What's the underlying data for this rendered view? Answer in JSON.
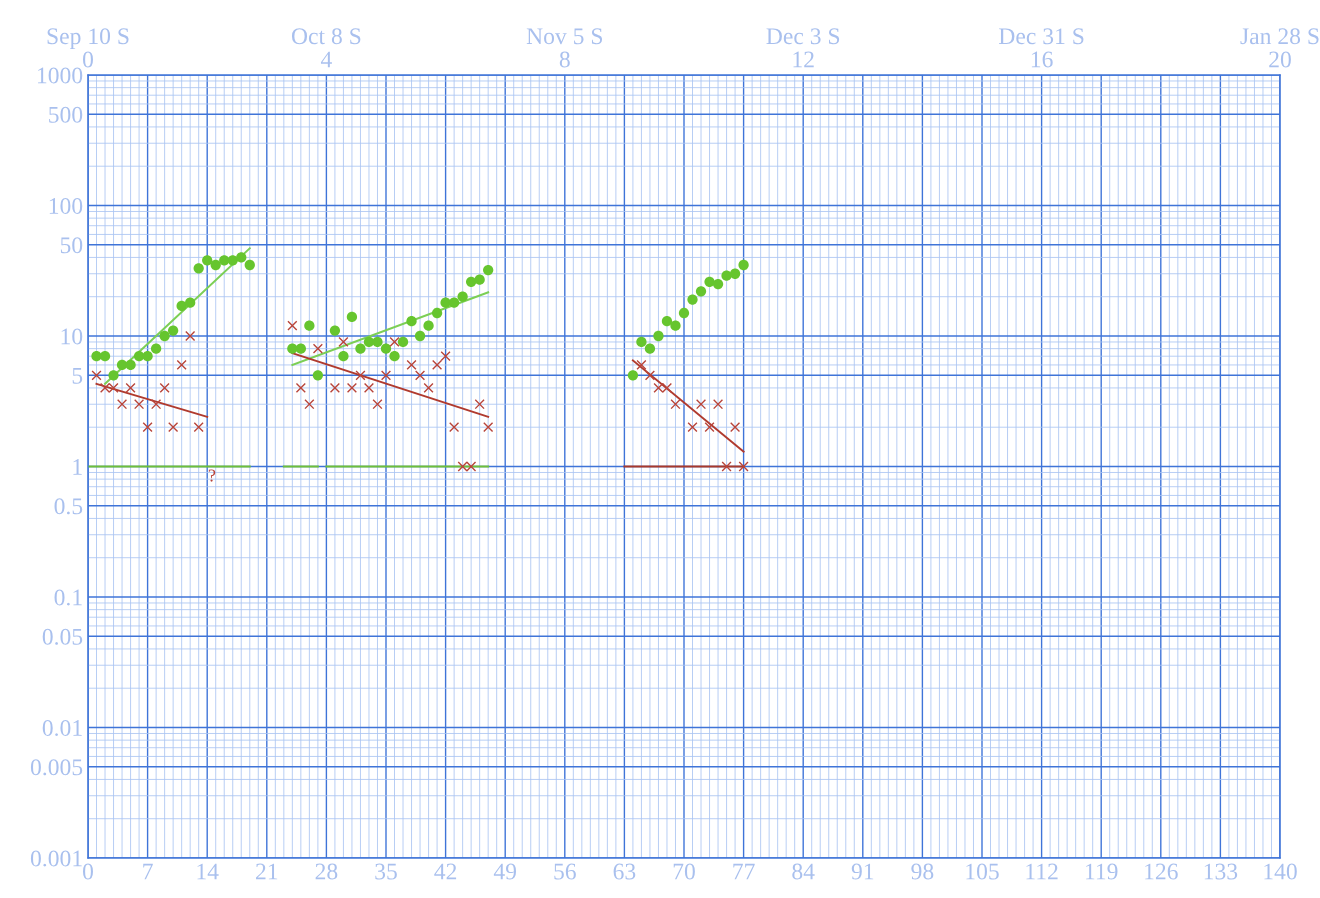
{
  "chart_data": {
    "type": "scatter",
    "xlim": [
      0,
      140
    ],
    "xticks": [
      0,
      {
        "value": 1,
        "label": null
      },
      {
        "value": 2,
        "label": null
      },
      {
        "value": 3,
        "label": null
      },
      {
        "value": 4,
        "label": null
      },
      {
        "value": 5,
        "label": null
      },
      {
        "value": 6,
        "label": null
      },
      7,
      {
        "value": 8,
        "label": null
      },
      {
        "value": 9,
        "label": null
      },
      {
        "value": 10,
        "label": null
      },
      {
        "value": 11,
        "label": null
      },
      {
        "value": 12,
        "label": null
      },
      {
        "value": 13,
        "label": null
      },
      14,
      {
        "value": 15,
        "label": null
      },
      {
        "value": 16,
        "label": null
      },
      {
        "value": 17,
        "label": null
      },
      {
        "value": 18,
        "label": null
      },
      {
        "value": 19,
        "label": null
      },
      {
        "value": 20,
        "label": null
      },
      21,
      {
        "value": 22,
        "label": null
      },
      {
        "value": 23,
        "label": null
      },
      {
        "value": 24,
        "label": null
      },
      {
        "value": 25,
        "label": null
      },
      {
        "value": 26,
        "label": null
      },
      {
        "value": 27,
        "label": null
      },
      28,
      {
        "value": 29,
        "label": null
      },
      {
        "value": 30,
        "label": null
      },
      {
        "value": 31,
        "label": null
      },
      {
        "value": 32,
        "label": null
      },
      {
        "value": 33,
        "label": null
      },
      {
        "value": 34,
        "label": null
      },
      35,
      {
        "value": 36,
        "label": null
      },
      {
        "value": 37,
        "label": null
      },
      {
        "value": 38,
        "label": null
      },
      {
        "value": 39,
        "label": null
      },
      {
        "value": 40,
        "label": null
      },
      {
        "value": 41,
        "label": null
      },
      42,
      {
        "value": 43,
        "label": null
      },
      {
        "value": 44,
        "label": null
      },
      {
        "value": 45,
        "label": null
      },
      {
        "value": 46,
        "label": null
      },
      {
        "value": 47,
        "label": null
      },
      {
        "value": 48,
        "label": null
      },
      49,
      {
        "value": 50,
        "label": null
      },
      {
        "value": 51,
        "label": null
      },
      {
        "value": 52,
        "label": null
      },
      {
        "value": 53,
        "label": null
      },
      {
        "value": 54,
        "label": null
      },
      {
        "value": 55,
        "label": null
      },
      56,
      {
        "value": 57,
        "label": null
      },
      {
        "value": 58,
        "label": null
      },
      {
        "value": 59,
        "label": null
      },
      {
        "value": 60,
        "label": null
      },
      {
        "value": 61,
        "label": null
      },
      {
        "value": 62,
        "label": null
      },
      63,
      {
        "value": 64,
        "label": null
      },
      {
        "value": 65,
        "label": null
      },
      {
        "value": 66,
        "label": null
      },
      {
        "value": 67,
        "label": null
      },
      {
        "value": 68,
        "label": null
      },
      {
        "value": 69,
        "label": null
      },
      70,
      {
        "value": 71,
        "label": null
      },
      {
        "value": 72,
        "label": null
      },
      {
        "value": 73,
        "label": null
      },
      {
        "value": 74,
        "label": null
      },
      {
        "value": 75,
        "label": null
      },
      {
        "value": 76,
        "label": null
      },
      77,
      {
        "value": 78,
        "label": null
      },
      {
        "value": 79,
        "label": null
      },
      {
        "value": 80,
        "label": null
      },
      {
        "value": 81,
        "label": null
      },
      {
        "value": 82,
        "label": null
      },
      {
        "value": 83,
        "label": null
      },
      84,
      {
        "value": 85,
        "label": null
      },
      {
        "value": 86,
        "label": null
      },
      {
        "value": 87,
        "label": null
      },
      {
        "value": 88,
        "label": null
      },
      {
        "value": 89,
        "label": null
      },
      {
        "value": 90,
        "label": null
      },
      91,
      {
        "value": 92,
        "label": null
      },
      {
        "value": 93,
        "label": null
      },
      {
        "value": 94,
        "label": null
      },
      {
        "value": 95,
        "label": null
      },
      {
        "value": 96,
        "label": null
      },
      {
        "value": 97,
        "label": null
      },
      98,
      {
        "value": 99,
        "label": null
      },
      {
        "value": 100,
        "label": null
      },
      {
        "value": 101,
        "label": null
      },
      {
        "value": 102,
        "label": null
      },
      {
        "value": 103,
        "label": null
      },
      {
        "value": 104,
        "label": null
      },
      105,
      {
        "value": 106,
        "label": null
      },
      {
        "value": 107,
        "label": null
      },
      {
        "value": 108,
        "label": null
      },
      {
        "value": 109,
        "label": null
      },
      {
        "value": 110,
        "label": null
      },
      {
        "value": 111,
        "label": null
      },
      112,
      {
        "value": 113,
        "label": null
      },
      {
        "value": 114,
        "label": null
      },
      {
        "value": 115,
        "label": null
      },
      {
        "value": 116,
        "label": null
      },
      {
        "value": 117,
        "label": null
      },
      {
        "value": 118,
        "label": null
      },
      119,
      {
        "value": 120,
        "label": null
      },
      {
        "value": 121,
        "label": null
      },
      {
        "value": 122,
        "label": null
      },
      {
        "value": 123,
        "label": null
      },
      {
        "value": 124,
        "label": null
      },
      {
        "value": 125,
        "label": null
      },
      126,
      {
        "value": 127,
        "label": null
      },
      {
        "value": 128,
        "label": null
      },
      {
        "value": 129,
        "label": null
      },
      {
        "value": 130,
        "label": null
      },
      {
        "value": 131,
        "label": null
      },
      {
        "value": 132,
        "label": null
      },
      133,
      {
        "value": 134,
        "label": null
      },
      {
        "value": 135,
        "label": null
      },
      {
        "value": 136,
        "label": null
      },
      {
        "value": 137,
        "label": null
      },
      {
        "value": 138,
        "label": null
      },
      {
        "value": 139,
        "label": null
      },
      140
    ],
    "x2lim": [
      0,
      20
    ],
    "x2ticks": [
      0,
      4,
      8,
      12,
      16,
      20
    ],
    "log": true,
    "ylim": [
      0.001,
      1000
    ],
    "yticks": [
      0.001,
      {
        "value": 0.002,
        "label": null
      },
      {
        "value": 0.003,
        "label": null
      },
      {
        "value": 0.004,
        "label": null
      },
      0.005,
      {
        "value": 0.006,
        "label": null
      },
      {
        "value": 0.007,
        "label": null
      },
      {
        "value": 0.008,
        "label": null
      },
      {
        "value": 0.009,
        "label": null
      },
      0.01,
      {
        "value": 0.02,
        "label": null
      },
      {
        "value": 0.03,
        "label": null
      },
      {
        "value": 0.04,
        "label": null
      },
      0.05,
      {
        "value": 0.06,
        "label": null
      },
      {
        "value": 0.07,
        "label": null
      },
      {
        "value": 0.08,
        "label": null
      },
      {
        "value": 0.09,
        "label": null
      },
      0.1,
      {
        "value": 0.2,
        "label": null
      },
      {
        "value": 0.3,
        "label": null
      },
      {
        "value": 0.4,
        "label": null
      },
      0.5,
      {
        "value": 0.6,
        "label": null
      },
      {
        "value": 0.7,
        "label": null
      },
      {
        "value": 0.8,
        "label": null
      },
      {
        "value": 0.9,
        "label": null
      },
      1,
      {
        "value": 2,
        "label": null
      },
      {
        "value": 3,
        "label": null
      },
      {
        "value": 4,
        "label": null
      },
      5,
      {
        "value": 6,
        "label": null
      },
      {
        "value": 7,
        "label": null
      },
      {
        "value": 8,
        "label": null
      },
      {
        "value": 9,
        "label": null
      },
      10,
      {
        "value": 20,
        "label": null
      },
      {
        "value": 30,
        "label": null
      },
      {
        "value": 40,
        "label": null
      },
      50,
      {
        "value": 60,
        "label": null
      },
      {
        "value": 70,
        "label": null
      },
      {
        "value": 80,
        "label": null
      },
      {
        "value": 90,
        "label": null
      },
      100,
      {
        "value": 200,
        "label": null
      },
      {
        "value": 300,
        "label": null
      },
      {
        "value": 400,
        "label": null
      },
      500,
      {
        "value": 600,
        "label": null
      },
      {
        "value": 700,
        "label": null
      },
      {
        "value": 800,
        "label": null
      },
      {
        "value": 900,
        "label": null
      },
      1000
    ],
    "grid": true,
    "legend": false,
    "annotations": [
      "Sep 10 S",
      "Oct 8 S",
      "Nov 5 S",
      "Dec 3 S",
      "Dec 31 S",
      "Jan 28 S",
      "?"
    ],
    "series": [
      {
        "marker": "circle",
        "color": "#66c52e",
        "x": [
          1,
          2,
          3,
          4,
          5,
          6,
          7,
          8,
          9,
          10,
          11,
          12,
          13,
          14,
          15,
          16,
          17,
          18,
          19,
          24,
          25,
          26,
          27,
          29,
          30,
          31,
          32,
          33,
          34,
          35,
          36,
          37,
          38,
          39,
          40,
          41,
          42,
          43,
          44,
          45,
          46,
          47,
          64,
          65,
          66,
          67,
          68,
          69,
          70,
          71,
          72,
          73,
          74,
          75,
          76,
          77
        ],
        "values": [
          7,
          7,
          5,
          6,
          6,
          7,
          7,
          8,
          10,
          11,
          17,
          18,
          33,
          38,
          35,
          38,
          38,
          40,
          35,
          8,
          8,
          12,
          5,
          11,
          7,
          14,
          8,
          9,
          9,
          8,
          7,
          9,
          13,
          10,
          12,
          15,
          18,
          18,
          20,
          26,
          27,
          32,
          5,
          9,
          8,
          10,
          13,
          12,
          15,
          19,
          22,
          26,
          25,
          29,
          30,
          35
        ]
      },
      {
        "marker": "cross",
        "color": "#b8443a",
        "x": [
          1,
          2,
          3,
          4,
          5,
          6,
          7,
          8,
          9,
          10,
          11,
          12,
          13,
          24,
          25,
          26,
          27,
          29,
          30,
          31,
          32,
          33,
          34,
          35,
          36,
          38,
          39,
          40,
          41,
          42,
          43,
          44,
          45,
          46,
          47,
          65,
          66,
          67,
          68,
          69,
          71,
          72,
          73,
          74,
          75,
          76,
          77
        ],
        "values": [
          5,
          4,
          4,
          3,
          4,
          3,
          2,
          3,
          4,
          2,
          6,
          10,
          2,
          12,
          4,
          3,
          8,
          4,
          9,
          4,
          5,
          4,
          3,
          5,
          9,
          6,
          5,
          4,
          6,
          7,
          2,
          1,
          1,
          3,
          2,
          6,
          5,
          4,
          4,
          3,
          2,
          3,
          2,
          3,
          1,
          2,
          1
        ]
      },
      {
        "type": "line",
        "line_style": "solid",
        "color": "#7ccf55",
        "x": [
          2,
          19
        ],
        "values": [
          4.3,
          47
        ]
      },
      {
        "type": "line",
        "line_style": "solid",
        "color": "#b03a2e",
        "x": [
          1,
          14
        ],
        "values": [
          4.3,
          2.4
        ]
      },
      {
        "type": "line",
        "line_style": "solid",
        "color": "#7ccf55",
        "x": [
          24,
          47
        ],
        "values": [
          6,
          21.6
        ]
      },
      {
        "type": "line",
        "line_style": "solid",
        "color": "#b03a2e",
        "x": [
          24,
          47
        ],
        "values": [
          7.4,
          2.4
        ]
      },
      {
        "type": "line",
        "line_style": "solid",
        "color": "#b03a2e",
        "x": [
          64,
          77
        ],
        "values": [
          6.5,
          1.3
        ]
      },
      {
        "type": "line",
        "line_style": "solid",
        "color": "#6fbf3a",
        "x": [
          0,
          19
        ],
        "values": [
          1,
          1
        ]
      },
      {
        "type": "line",
        "line_style": "solid",
        "color": "#6fbf3a",
        "x": [
          23,
          27
        ],
        "values": [
          1,
          1
        ]
      },
      {
        "type": "line",
        "line_style": "solid",
        "color": "#6fbf3a",
        "x": [
          28,
          47
        ],
        "values": [
          1,
          1
        ]
      },
      {
        "type": "line",
        "line_style": "solid",
        "color": "#a8392c",
        "x": [
          63,
          77
        ],
        "values": [
          1,
          1
        ]
      }
    ]
  }
}
